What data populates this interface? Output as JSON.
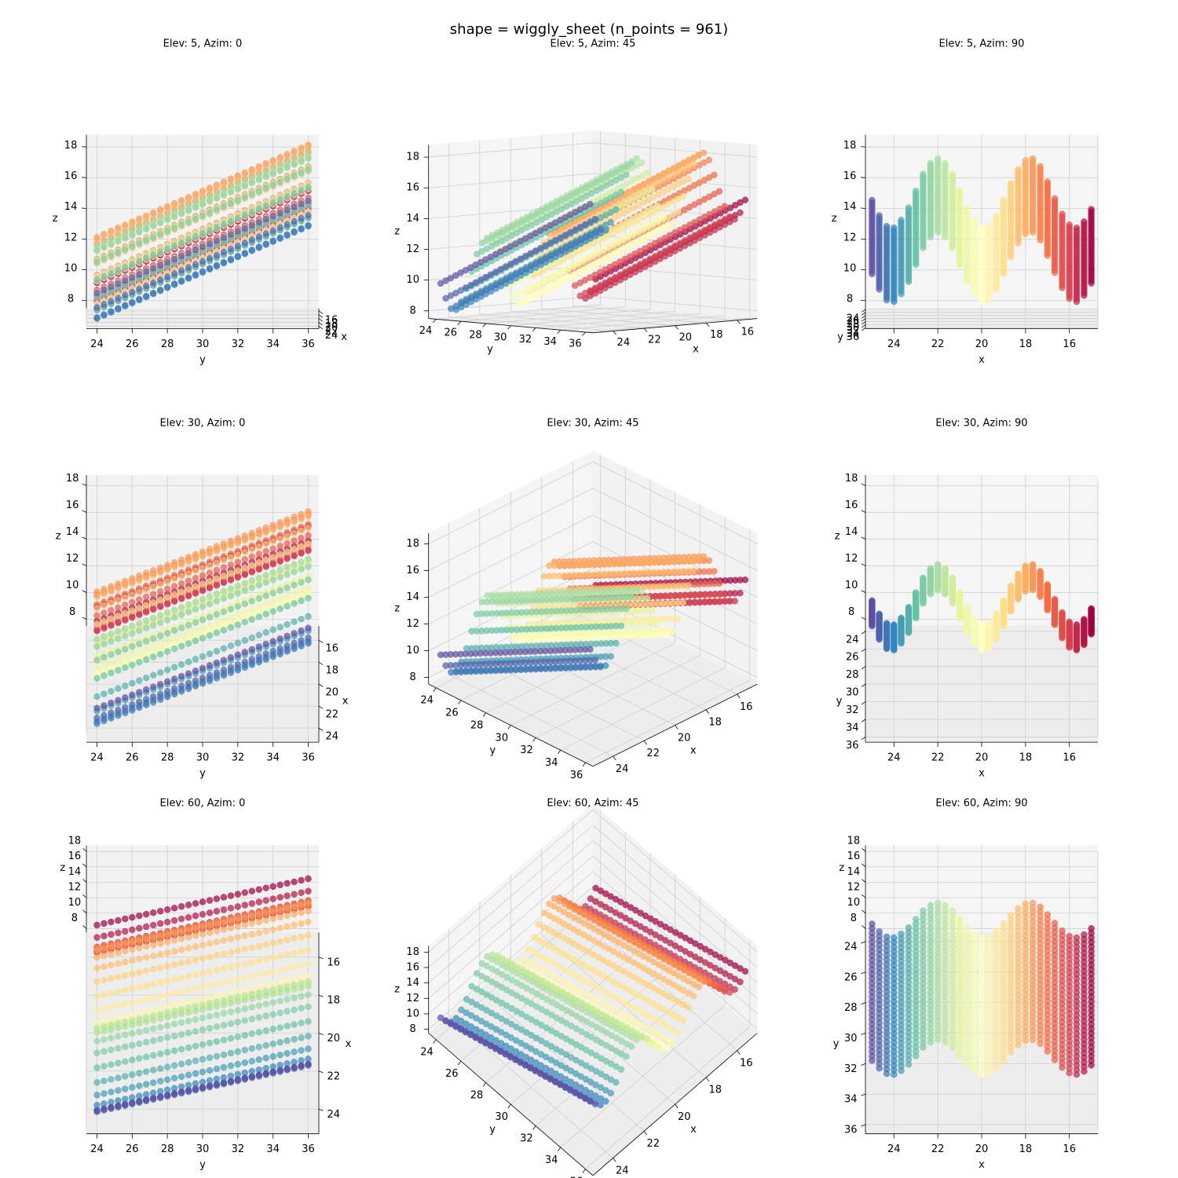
{
  "chart_data": {
    "type": "scatter3d",
    "title": "shape = wiggly_sheet (n_points = 961)",
    "xlabel": "x",
    "ylabel": "y",
    "zlabel": "z",
    "xlim": [
      14.7,
      25.3
    ],
    "ylim": [
      23.4,
      36.6
    ],
    "zlim": [
      7.5,
      18.8
    ],
    "xticks": [
      16,
      18,
      20,
      22,
      24
    ],
    "yticks": [
      24,
      26,
      28,
      30,
      32,
      34,
      36
    ],
    "zticks": [
      8,
      10,
      12,
      14,
      16,
      18
    ],
    "colormap": [
      "#9e0142",
      "#d53e4f",
      "#f46d43",
      "#fdae61",
      "#fee08b",
      "#ffffbf",
      "#e6f598",
      "#abdda4",
      "#66c2a5",
      "#3288bd",
      "#5e4fa2"
    ],
    "alpha": 0.7,
    "grid": true,
    "views": [
      {
        "title": "Elev: 5, Azim: 0",
        "elev": 5,
        "azim": 0
      },
      {
        "title": "Elev: 5, Azim: 45",
        "elev": 5,
        "azim": 45
      },
      {
        "title": "Elev: 5, Azim: 90",
        "elev": 5,
        "azim": 90
      },
      {
        "title": "Elev: 30, Azim: 0",
        "elev": 30,
        "azim": 0
      },
      {
        "title": "Elev: 30, Azim: 45",
        "elev": 30,
        "azim": 45
      },
      {
        "title": "Elev: 30, Azim: 90",
        "elev": 30,
        "azim": 90
      },
      {
        "title": "Elev: 60, Azim: 0",
        "elev": 60,
        "azim": 0
      },
      {
        "title": "Elev: 60, Azim: 45",
        "elev": 60,
        "azim": 45
      },
      {
        "title": "Elev: 60, Azim: 90",
        "elev": 60,
        "azim": 90
      }
    ],
    "x": [
      15,
      15.33,
      15.67,
      16,
      16.33,
      16.67,
      17,
      17.33,
      17.67,
      18,
      18.33,
      18.67,
      19,
      19.33,
      19.67,
      20,
      20.33,
      20.67,
      21,
      21.33,
      21.67,
      22,
      22.33,
      22.67,
      23,
      23.33,
      23.67,
      24,
      24.33,
      24.67,
      25
    ],
    "y": [
      24,
      24.4,
      24.8,
      25.2,
      25.6,
      26,
      26.4,
      26.8,
      27.2,
      27.6,
      28,
      28.4,
      28.8,
      29.2,
      29.6,
      30,
      30.4,
      30.8,
      31.2,
      31.6,
      32,
      32.4,
      32.8,
      33.2,
      33.6,
      34,
      34.4,
      34.8,
      35.2,
      35.6,
      36
    ],
    "z": [
      [
        9.2,
        9.4,
        9.6,
        9.8,
        10,
        10.2,
        10.4,
        10.6,
        10.8,
        11,
        11.2,
        11.4,
        11.6,
        11.8,
        12,
        12.2,
        12.4,
        12.6,
        12.8,
        13,
        13.2,
        13.4,
        13.6,
        13.8,
        14,
        14.2,
        14.4,
        14.6,
        14.8,
        15,
        15.2
      ],
      [
        8.4,
        8.6,
        8.8,
        9,
        9.2,
        9.4,
        9.6,
        9.8,
        10,
        10.2,
        10.4,
        10.6,
        10.8,
        11,
        11.2,
        11.4,
        11.6,
        11.8,
        12,
        12.2,
        12.4,
        12.6,
        12.8,
        13,
        13.2,
        13.4,
        13.6,
        13.8,
        14,
        14.2,
        14.4
      ],
      [
        8,
        8.2,
        8.4,
        8.6,
        8.8,
        9,
        9.2,
        9.4,
        9.6,
        9.8,
        10,
        10.2,
        10.4,
        10.6,
        10.8,
        11,
        11.2,
        11.4,
        11.6,
        11.8,
        12,
        12.2,
        12.4,
        12.6,
        12.8,
        13,
        13.2,
        13.4,
        13.6,
        13.8,
        14
      ],
      [
        8.2,
        8.4,
        8.6,
        8.8,
        9,
        9.2,
        9.4,
        9.6,
        9.8,
        10,
        10.2,
        10.4,
        10.6,
        10.8,
        11,
        11.2,
        11.4,
        11.6,
        11.8,
        12,
        12.2,
        12.4,
        12.6,
        12.8,
        13,
        13.2,
        13.4,
        13.6,
        13.8,
        14,
        14.2
      ],
      [
        8.9,
        9.1,
        9.3,
        9.5,
        9.7,
        9.9,
        10.1,
        10.3,
        10.5,
        10.7,
        10.9,
        11.1,
        11.3,
        11.5,
        11.7,
        11.9,
        12.1,
        12.3,
        12.5,
        12.7,
        12.9,
        13.1,
        13.3,
        13.5,
        13.7,
        13.9,
        14.1,
        14.3,
        14.5,
        14.7,
        14.9
      ],
      [
        9.9,
        10.1,
        10.3,
        10.5,
        10.7,
        10.9,
        11.1,
        11.3,
        11.5,
        11.7,
        11.9,
        12.1,
        12.3,
        12.5,
        12.7,
        12.9,
        13.1,
        13.3,
        13.5,
        13.7,
        13.9,
        14.1,
        14.3,
        14.5,
        14.7,
        14.9,
        15.1,
        15.3,
        15.5,
        15.7,
        15.9
      ],
      [
        11,
        11.2,
        11.4,
        11.6,
        11.8,
        12,
        12.2,
        12.4,
        12.6,
        12.8,
        13,
        13.2,
        13.4,
        13.6,
        13.8,
        14,
        14.2,
        14.4,
        14.6,
        14.8,
        15,
        15.2,
        15.4,
        15.6,
        15.8,
        16,
        16.2,
        16.4,
        16.6,
        16.8,
        17
      ],
      [
        12,
        12.2,
        12.4,
        12.6,
        12.8,
        13,
        13.2,
        13.4,
        13.6,
        13.8,
        14,
        14.2,
        14.4,
        14.6,
        14.8,
        15,
        15.2,
        15.4,
        15.6,
        15.8,
        16,
        16.2,
        16.4,
        16.6,
        16.8,
        17,
        17.2,
        17.4,
        17.6,
        17.8,
        18
      ],
      [
        12.5,
        12.7,
        12.9,
        13.1,
        13.3,
        13.5,
        13.7,
        13.9,
        14.1,
        14.3,
        14.5,
        14.7,
        14.9,
        15.1,
        15.3,
        15.5,
        15.7,
        15.9,
        16.1,
        16.3,
        16.5,
        16.7,
        16.9,
        17.1,
        17.3,
        17.5,
        17.7,
        17.9,
        18.1,
        18.3,
        18.5
      ],
      [
        12.4,
        12.6,
        12.8,
        13,
        13.2,
        13.4,
        13.6,
        13.8,
        14,
        14.2,
        14.4,
        14.6,
        14.8,
        15,
        15.2,
        15.4,
        15.6,
        15.8,
        16,
        16.2,
        16.4,
        16.6,
        16.8,
        17,
        17.2,
        17.4,
        17.6,
        17.8,
        18,
        18.2,
        18.4
      ],
      [
        11.8,
        12,
        12.2,
        12.4,
        12.6,
        12.8,
        13,
        13.2,
        13.4,
        13.6,
        13.8,
        14,
        14.2,
        14.4,
        14.6,
        14.8,
        15,
        15.2,
        15.4,
        15.6,
        15.8,
        16,
        16.2,
        16.4,
        16.6,
        16.8,
        17,
        17.2,
        17.4,
        17.6,
        17.8
      ],
      [
        10.9,
        11.1,
        11.3,
        11.5,
        11.7,
        11.9,
        12.1,
        12.3,
        12.5,
        12.7,
        12.9,
        13.1,
        13.3,
        13.5,
        13.7,
        13.9,
        14.1,
        14.3,
        14.5,
        14.7,
        14.9,
        15.1,
        15.3,
        15.5,
        15.7,
        15.9,
        16.1,
        16.3,
        16.5,
        16.7,
        16.9
      ],
      [
        9.8,
        10,
        10.2,
        10.4,
        10.6,
        10.8,
        11,
        11.2,
        11.4,
        11.6,
        11.8,
        12,
        12.2,
        12.4,
        12.6,
        12.8,
        13,
        13.2,
        13.4,
        13.6,
        13.8,
        14,
        14.2,
        14.4,
        14.6,
        14.8,
        15,
        15.2,
        15.4,
        15.6,
        15.8
      ],
      [
        8.8,
        9,
        9.2,
        9.4,
        9.6,
        9.8,
        10,
        10.2,
        10.4,
        10.6,
        10.8,
        11,
        11.2,
        11.4,
        11.6,
        11.8,
        12,
        12.2,
        12.4,
        12.6,
        12.8,
        13,
        13.2,
        13.4,
        13.6,
        13.8,
        14,
        14.2,
        14.4,
        14.6,
        14.8
      ],
      [
        8.1,
        8.3,
        8.5,
        8.7,
        8.9,
        9.1,
        9.3,
        9.5,
        9.7,
        9.9,
        10.1,
        10.3,
        10.5,
        10.7,
        10.9,
        11.1,
        11.3,
        11.5,
        11.7,
        11.9,
        12.1,
        12.3,
        12.5,
        12.7,
        12.9,
        13.1,
        13.3,
        13.5,
        13.7,
        13.9,
        14.1
      ],
      [
        8,
        8.2,
        8.4,
        8.6,
        8.8,
        9,
        9.2,
        9.4,
        9.6,
        9.8,
        10,
        10.2,
        10.4,
        10.6,
        10.8,
        11,
        11.2,
        11.4,
        11.6,
        11.8,
        12,
        12.2,
        12.4,
        12.6,
        12.8,
        13,
        13.2,
        13.4,
        13.6,
        13.8,
        14
      ],
      [
        8.5,
        8.7,
        8.9,
        9.1,
        9.3,
        9.5,
        9.7,
        9.9,
        10.1,
        10.3,
        10.5,
        10.7,
        10.9,
        11.1,
        11.3,
        11.5,
        11.7,
        11.9,
        12.1,
        12.3,
        12.5,
        12.7,
        12.9,
        13.1,
        13.3,
        13.5,
        13.7,
        13.9,
        14.1,
        14.3,
        14.5
      ],
      [
        9.3,
        9.5,
        9.7,
        9.9,
        10.1,
        10.3,
        10.5,
        10.7,
        10.9,
        11.1,
        11.3,
        11.5,
        11.7,
        11.9,
        12.1,
        12.3,
        12.5,
        12.7,
        12.9,
        13.1,
        13.3,
        13.5,
        13.7,
        13.9,
        14.1,
        14.3,
        14.5,
        14.7,
        14.9,
        15.1,
        15.3
      ],
      [
        10.4,
        10.6,
        10.8,
        11,
        11.2,
        11.4,
        11.6,
        11.8,
        12,
        12.2,
        12.4,
        12.6,
        12.8,
        13,
        13.2,
        13.4,
        13.6,
        13.8,
        14,
        14.2,
        14.4,
        14.6,
        14.8,
        15,
        15.2,
        15.4,
        15.6,
        15.8,
        16,
        16.2,
        16.4
      ],
      [
        11.5,
        11.7,
        11.9,
        12.1,
        12.3,
        12.5,
        12.7,
        12.9,
        13.1,
        13.3,
        13.5,
        13.7,
        13.9,
        14.1,
        14.3,
        14.5,
        14.7,
        14.9,
        15.1,
        15.3,
        15.5,
        15.7,
        15.9,
        16.1,
        16.3,
        16.5,
        16.7,
        16.9,
        17.1,
        17.3,
        17.5
      ],
      [
        12.2,
        12.4,
        12.6,
        12.8,
        13,
        13.2,
        13.4,
        13.6,
        13.8,
        14,
        14.2,
        14.4,
        14.6,
        14.8,
        15,
        15.2,
        15.4,
        15.6,
        15.8,
        16,
        16.2,
        16.4,
        16.6,
        16.8,
        17,
        17.2,
        17.4,
        17.6,
        17.8,
        18,
        18.2
      ],
      [
        12.5,
        12.7,
        12.9,
        13.1,
        13.3,
        13.5,
        13.7,
        13.9,
        14.1,
        14.3,
        14.5,
        14.7,
        14.9,
        15.1,
        15.3,
        15.5,
        15.7,
        15.9,
        16.1,
        16.3,
        16.5,
        16.7,
        16.9,
        17.1,
        17.3,
        17.5,
        17.7,
        17.9,
        18.1,
        18.3,
        18.5
      ],
      [
        12.2,
        12.4,
        12.6,
        12.8,
        13,
        13.2,
        13.4,
        13.6,
        13.8,
        14,
        14.2,
        14.4,
        14.6,
        14.8,
        15,
        15.2,
        15.4,
        15.6,
        15.8,
        16,
        16.2,
        16.4,
        16.6,
        16.8,
        17,
        17.2,
        17.4,
        17.6,
        17.8,
        18,
        18.2
      ],
      [
        11.5,
        11.7,
        11.9,
        12.1,
        12.3,
        12.5,
        12.7,
        12.9,
        13.1,
        13.3,
        13.5,
        13.7,
        13.9,
        14.1,
        14.3,
        14.5,
        14.7,
        14.9,
        15.1,
        15.3,
        15.5,
        15.7,
        15.9,
        16.1,
        16.3,
        16.5,
        16.7,
        16.9,
        17.1,
        17.3,
        17.5
      ],
      [
        10.4,
        10.6,
        10.8,
        11,
        11.2,
        11.4,
        11.6,
        11.8,
        12,
        12.2,
        12.4,
        12.6,
        12.8,
        13,
        13.2,
        13.4,
        13.6,
        13.8,
        14,
        14.2,
        14.4,
        14.6,
        14.8,
        15,
        15.2,
        15.4,
        15.6,
        15.8,
        16,
        16.2,
        16.4
      ],
      [
        9.3,
        9.5,
        9.7,
        9.9,
        10.1,
        10.3,
        10.5,
        10.7,
        10.9,
        11.1,
        11.3,
        11.5,
        11.7,
        11.9,
        12.1,
        12.3,
        12.5,
        12.7,
        12.9,
        13.1,
        13.3,
        13.5,
        13.7,
        13.9,
        14.1,
        14.3,
        14.5,
        14.7,
        14.9,
        15.1,
        15.3
      ],
      [
        8.5,
        8.7,
        8.9,
        9.1,
        9.3,
        9.5,
        9.7,
        9.9,
        10.1,
        10.3,
        10.5,
        10.7,
        10.9,
        11.1,
        11.3,
        11.5,
        11.7,
        11.9,
        12.1,
        12.3,
        12.5,
        12.7,
        12.9,
        13.1,
        13.3,
        13.5,
        13.7,
        13.9,
        14.1,
        14.3,
        14.5
      ],
      [
        8,
        8.2,
        8.4,
        8.6,
        8.8,
        9,
        9.2,
        9.4,
        9.6,
        9.8,
        10,
        10.2,
        10.4,
        10.6,
        10.8,
        11,
        11.2,
        11.4,
        11.6,
        11.8,
        12,
        12.2,
        12.4,
        12.6,
        12.8,
        13,
        13.2,
        13.4,
        13.6,
        13.8,
        14
      ],
      [
        8.1,
        8.3,
        8.5,
        8.7,
        8.9,
        9.1,
        9.3,
        9.5,
        9.7,
        9.9,
        10.1,
        10.3,
        10.5,
        10.7,
        10.9,
        11.1,
        11.3,
        11.5,
        11.7,
        11.9,
        12.1,
        12.3,
        12.5,
        12.7,
        12.9,
        13.1,
        13.3,
        13.5,
        13.7,
        13.9,
        14.1
      ],
      [
        8.8,
        9,
        9.2,
        9.4,
        9.6,
        9.8,
        10,
        10.2,
        10.4,
        10.6,
        10.8,
        11,
        11.2,
        11.4,
        11.6,
        11.8,
        12,
        12.2,
        12.4,
        12.6,
        12.8,
        13,
        13.2,
        13.4,
        13.6,
        13.8,
        14,
        14.2,
        14.4,
        14.6,
        14.8
      ],
      [
        9.8,
        10,
        10.2,
        10.4,
        10.6,
        10.8,
        11,
        11.2,
        11.4,
        11.6,
        11.8,
        12,
        12.2,
        12.4,
        12.6,
        12.8,
        13,
        13.2,
        13.4,
        13.6,
        13.8,
        14,
        14.2,
        14.4,
        14.6,
        14.8,
        15,
        15.2,
        15.4,
        15.6,
        15.8
      ]
    ]
  }
}
